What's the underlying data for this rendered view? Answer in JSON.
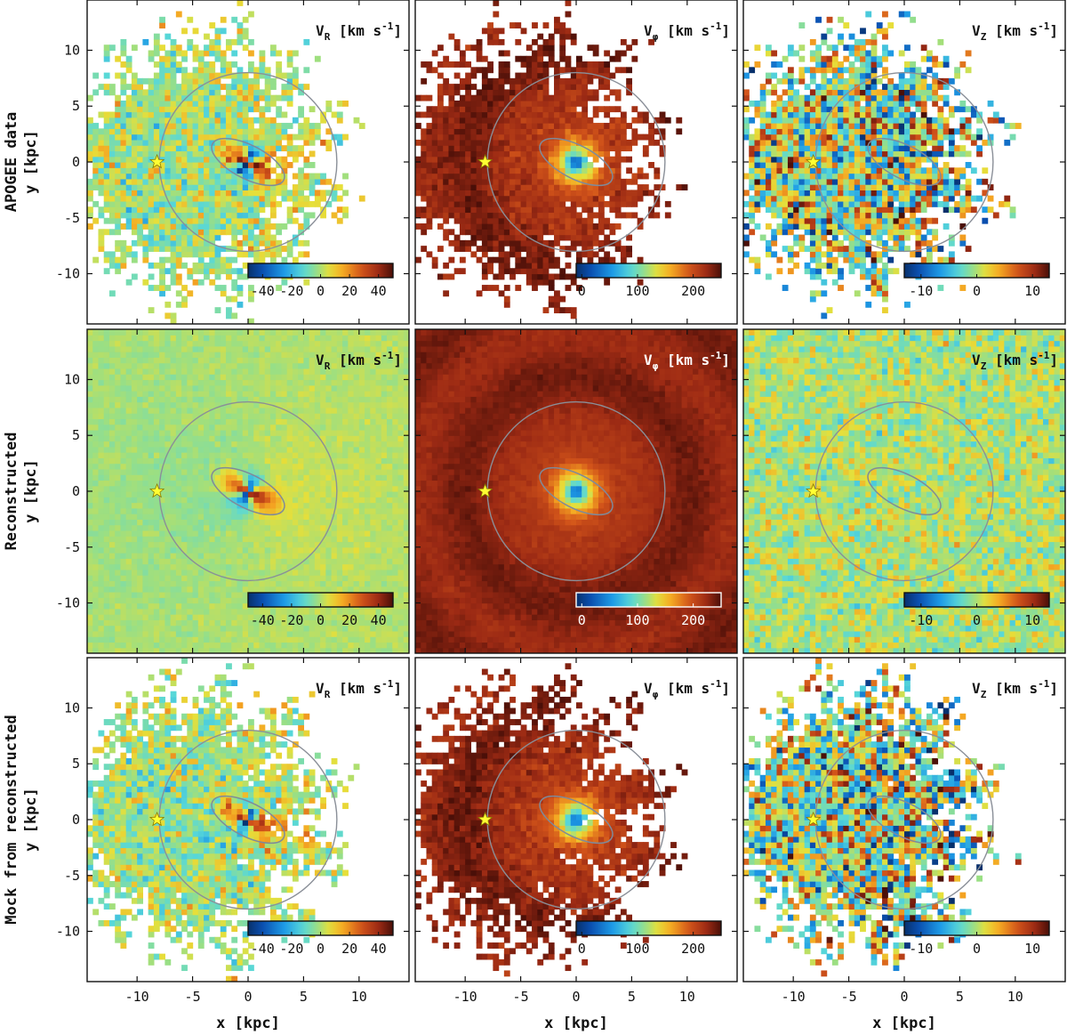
{
  "chart_data": {
    "type": "heatmap",
    "description_units": "velocity maps, km s^-1",
    "x_axis": {
      "label": "x [kpc]",
      "range": [
        -14.5,
        14.5
      ],
      "ticks": [
        -10,
        -5,
        0,
        5,
        10
      ]
    },
    "y_axis": {
      "label": "y [kpc]",
      "range": [
        -14.5,
        14.5
      ],
      "ticks": [
        -10,
        -5,
        0,
        5,
        10
      ]
    },
    "rows": [
      {
        "key": "apogee",
        "title_lines": [
          "APOGEE data",
          "y [kpc]"
        ]
      },
      {
        "key": "recon",
        "title_lines": [
          "Reconstructed",
          "y [kpc]"
        ]
      },
      {
        "key": "mock",
        "title_lines": [
          "Mock from reconstructed",
          "y [kpc]"
        ]
      }
    ],
    "columns": [
      {
        "key": "VR",
        "title_main": "V",
        "title_sub": "R",
        "title_unit": "[km s",
        "title_exp": "-1",
        "title_close": "]",
        "colorbar": {
          "range": [
            -50,
            50
          ],
          "ticks": [
            -40,
            -20,
            0,
            20,
            40
          ],
          "labels": [
            "-40",
            "-20",
            "0",
            "20",
            "40"
          ]
        }
      },
      {
        "key": "Vphi",
        "title_main": "V",
        "title_sub": "φ",
        "title_unit": "[km s",
        "title_exp": "-1",
        "title_close": "]",
        "colorbar": {
          "range": [
            -10,
            250
          ],
          "ticks": [
            0,
            100,
            200
          ],
          "labels": [
            "0",
            "100",
            "200"
          ]
        }
      },
      {
        "key": "VZ",
        "title_main": "V",
        "title_sub": "Z",
        "title_unit": "[km s",
        "title_exp": "-1",
        "title_close": "]",
        "colorbar": {
          "range": [
            -13,
            13
          ],
          "ticks": [
            -10,
            0,
            10
          ],
          "labels": [
            "-10",
            "0",
            "10"
          ]
        }
      }
    ],
    "sun_marker": {
      "x": -8.2,
      "y": 0.0,
      "symbol": "star",
      "color": "#ffff33"
    },
    "circle_contour": {
      "radius_kpc": 8.0,
      "center": [
        0,
        0
      ]
    },
    "bar_contour": {
      "semi_major_kpc": 3.6,
      "semi_minor_kpc": 1.5,
      "angle_deg": -27
    },
    "grid": false
  }
}
